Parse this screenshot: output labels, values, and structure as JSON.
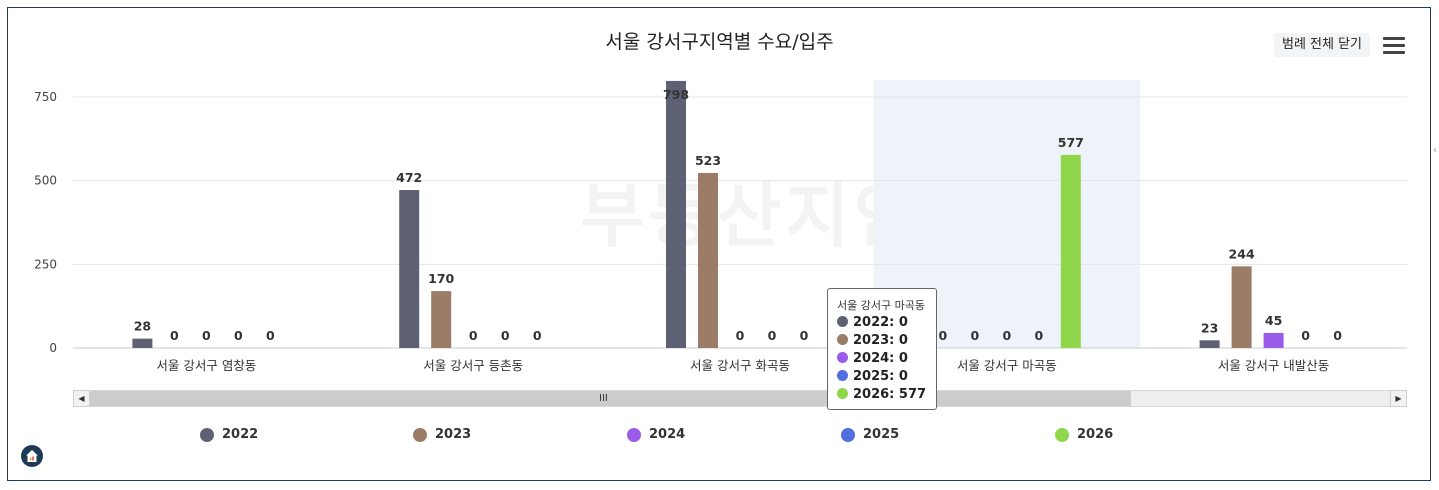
{
  "title": "서울 강서구지역별 수요/입주",
  "legend_toggle_label": "범례 전체 닫기",
  "watermark": "부동산지인",
  "colors": {
    "2022": "#5e6173",
    "2023": "#9a7c67",
    "2024": "#9a5be8",
    "2025": "#4f6fe0",
    "2026": "#8fd64b",
    "highlight": "#eef3f9",
    "frame": "#1f3b57"
  },
  "chart_data": {
    "type": "bar",
    "title": "서울 강서구지역별 수요/입주",
    "categories": [
      "서울 강서구 염창동",
      "서울 강서구 등촌동",
      "서울 강서구 화곡동",
      "서울 강서구 마곡동",
      "서울 강서구 내발산동"
    ],
    "series": [
      {
        "name": "2022",
        "values": [
          28,
          472,
          798,
          0,
          23
        ]
      },
      {
        "name": "2023",
        "values": [
          0,
          170,
          523,
          0,
          244
        ]
      },
      {
        "name": "2024",
        "values": [
          0,
          0,
          0,
          0,
          45
        ]
      },
      {
        "name": "2025",
        "values": [
          0,
          0,
          0,
          0,
          0
        ]
      },
      {
        "name": "2026",
        "values": [
          0,
          0,
          0,
          577,
          0
        ]
      }
    ],
    "yticks": [
      0,
      250,
      500,
      750
    ],
    "ylim": [
      0,
      800
    ],
    "highlighted_category": "서울 강서구 마곡동",
    "grid": true,
    "legend_position": "bottom"
  },
  "tooltip": {
    "header": "서울 강서구 마곡동",
    "rows": [
      {
        "label": "2022: 0",
        "series": "2022"
      },
      {
        "label": "2023: 0",
        "series": "2023"
      },
      {
        "label": "2024: 0",
        "series": "2024"
      },
      {
        "label": "2025: 0",
        "series": "2025"
      },
      {
        "label": "2026: 577",
        "series": "2026"
      }
    ]
  },
  "scrollbar": {
    "grip": "III",
    "left_arrow": "◀",
    "right_arrow": "▶"
  }
}
